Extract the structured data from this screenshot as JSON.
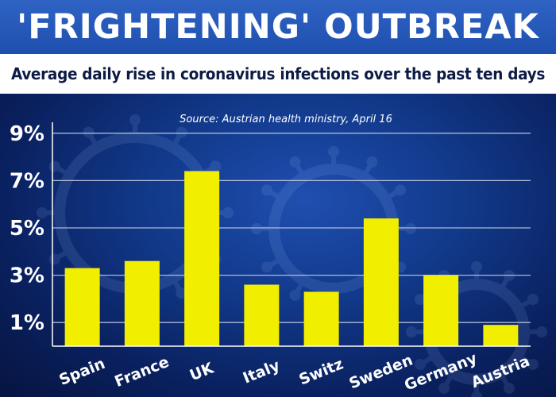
{
  "header": {
    "title": "'FRIGHTENING' OUTBREAK",
    "subtitle": "Average daily rise in coronavirus infections over the past ten days"
  },
  "chart_data": {
    "type": "bar",
    "source": "Source: Austrian health ministry, April 16",
    "categories": [
      "Spain",
      "France",
      "UK",
      "Italy",
      "Switz",
      "Sweden",
      "Germany",
      "Austria"
    ],
    "values": [
      3.3,
      3.6,
      7.4,
      2.6,
      2.3,
      5.4,
      3.0,
      0.9
    ],
    "unit": "%",
    "y_ticks": [
      "1%",
      "3%",
      "5%",
      "7%",
      "9%"
    ],
    "y_tick_values": [
      1,
      3,
      5,
      7,
      9
    ],
    "ylim": [
      0,
      9
    ],
    "grid": true,
    "bar_color": "#f2ee00",
    "grid_color": "#c8cfe6"
  }
}
